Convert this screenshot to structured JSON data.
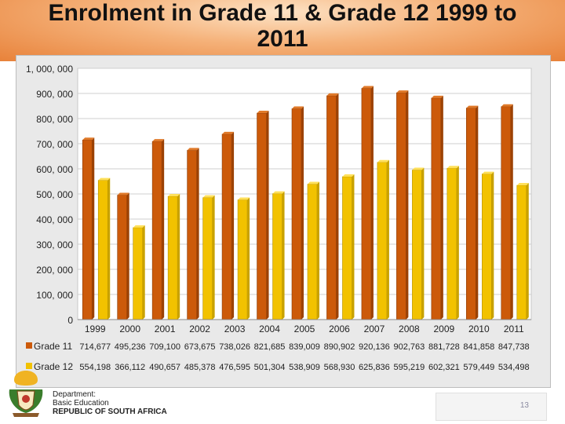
{
  "slide": {
    "title_line1": "Enrolment in Grade 11 & Grade 12 1999 to",
    "title_line2": "2011",
    "page_number": "13",
    "footer": {
      "dept": "Department:",
      "dept_name": "Basic Education",
      "country": "REPUBLIC OF SOUTH AFRICA"
    }
  },
  "colors": {
    "banner": "#e8823a",
    "grade11": "#cc5a0a",
    "grade12": "#f2c200",
    "panel": "#e9e9e9"
  },
  "chart_data": {
    "type": "bar",
    "title": "",
    "categories": [
      "1999",
      "2000",
      "2001",
      "2002",
      "2003",
      "2004",
      "2005",
      "2006",
      "2007",
      "2008",
      "2009",
      "2010",
      "2011"
    ],
    "series": [
      {
        "name": "Grade 11",
        "values": [
          714677,
          495236,
          709100,
          673675,
          738026,
          821685,
          839009,
          890902,
          920136,
          902763,
          881728,
          841858,
          847738
        ],
        "labels": [
          "714,677",
          "495,236",
          "709,100",
          "673,675",
          "738,026",
          "821,685",
          "839,009",
          "890,902",
          "920,136",
          "902,763",
          "881,728",
          "841,858",
          "847,738"
        ]
      },
      {
        "name": "Grade 12",
        "values": [
          554198,
          366112,
          490657,
          485378,
          476595,
          501304,
          538909,
          568930,
          625836,
          595219,
          602321,
          579449,
          534498
        ],
        "labels": [
          "554,198",
          "366,112",
          "490,657",
          "485,378",
          "476,595",
          "501,304",
          "538,909",
          "568,930",
          "625,836",
          "595,219",
          "602,321",
          "579,449",
          "534,498"
        ]
      }
    ],
    "ylim": [
      0,
      1000000
    ],
    "yticks": [
      0,
      100000,
      200000,
      300000,
      400000,
      500000,
      600000,
      700000,
      800000,
      900000,
      1000000
    ],
    "ytick_labels": [
      "0",
      "100, 000",
      "200, 000",
      "300, 000",
      "400, 000",
      "500, 000",
      "600, 000",
      "700, 000",
      "800, 000",
      "900, 000",
      "1, 000, 000"
    ],
    "grid": true,
    "legend": "data-table"
  }
}
